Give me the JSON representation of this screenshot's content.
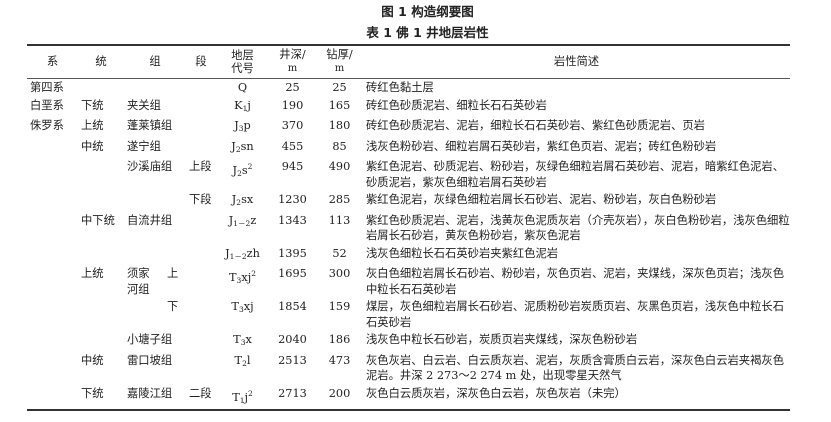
{
  "figure_caption": "图 1   构造纲要图",
  "table_caption": "表 1   佛 1 井地层岩性",
  "headers": {
    "system": "系",
    "series": "统",
    "formation": "组",
    "member": "段",
    "code_line1": "地层",
    "code_line2": "代号",
    "depth_line1": "井深/",
    "depth_line2": "m",
    "thickness_line1": "钻厚/",
    "thickness_line2": "m",
    "description": "岩性简述"
  },
  "rows": [
    {
      "system": "第四系",
      "series": "",
      "formation": "",
      "member": "",
      "code": {
        "b": "Q",
        "sub": "",
        "t": "",
        "sup": ""
      },
      "depth": "25",
      "thickness": "25",
      "description": "砖红色黏土层"
    },
    {
      "system": "白垩系",
      "series": "下统",
      "formation": "夹关组",
      "member": "",
      "code": {
        "b": "K",
        "sub": "1",
        "t": "j",
        "sup": ""
      },
      "depth": "190",
      "thickness": "165",
      "description": "砖红色砂质泥岩、细粒长石石英砂岩"
    },
    {
      "system": "侏罗系",
      "series": "上统",
      "formation": "蓬莱镇组",
      "member": "",
      "code": {
        "b": "J",
        "sub": "3",
        "t": "p",
        "sup": ""
      },
      "depth": "370",
      "thickness": "180",
      "description": "砖红色砂质泥岩、泥岩，细粒长石石英砂岩、紫红色砂质泥岩、页岩"
    },
    {
      "system": "",
      "series": "中统",
      "formation": "遂宁组",
      "member": "",
      "code": {
        "b": "J",
        "sub": "2",
        "t": "sn",
        "sup": ""
      },
      "depth": "455",
      "thickness": "85",
      "description": "浅灰色粉砂岩、细粒岩屑石英砂岩，紫红色页岩、泥岩；砖红色粉砂岩"
    },
    {
      "system": "",
      "series": "",
      "formation": "沙溪庙组",
      "member": "上段",
      "code": {
        "b": "J",
        "sub": "2",
        "t": "s",
        "sup": "2"
      },
      "depth": "945",
      "thickness": "490",
      "description": "紫红色泥岩、砂质泥岩、粉砂岩，灰绿色细粒岩屑石英砂岩、泥岩，暗紫红色泥岩、砂质泥岩，紫灰色细粒岩屑石英砂岩"
    },
    {
      "system": "",
      "series": "",
      "formation": "",
      "member": "下段",
      "code": {
        "b": "J",
        "sub": "2",
        "t": "sx",
        "sup": ""
      },
      "depth": "1230",
      "thickness": "285",
      "description": "紫红色泥岩，灰绿色细粒岩屑长石砂岩、泥岩、粉砂岩，灰白色粉砂岩"
    },
    {
      "system": "",
      "series": "中下统",
      "formation": "自流井组",
      "member": "",
      "code": {
        "b": "J",
        "sub": "1－2",
        "t": "z",
        "sup": ""
      },
      "depth": "1343",
      "thickness": "113",
      "description": "紫红色砂质泥岩、泥岩，浅黄灰色泥质灰岩（介壳灰岩），灰白色粉砂岩，浅灰色细粒岩屑长石砂岩，黄灰色粉砂岩，紫灰色泥岩"
    },
    {
      "system": "",
      "series": "",
      "formation": "",
      "member": "",
      "code": {
        "b": "J",
        "sub": "1－2",
        "t": "zh",
        "sup": ""
      },
      "depth": "1395",
      "thickness": "52",
      "description": "浅灰色细粒长石石英砂岩夹紫红色泥岩"
    },
    {
      "system": "",
      "series": "上统",
      "formation": "须家河组",
      "member": "上",
      "shift": true,
      "code": {
        "b": "T",
        "sub": "3",
        "t": "xj",
        "sup": "2"
      },
      "depth": "1695",
      "thickness": "300",
      "description": "灰白色细粒岩屑长石砂岩、粉砂岩，灰色页岩、泥岩，夹煤线，深灰色页岩；浅灰色中粒长石石英砂岩"
    },
    {
      "system": "",
      "series": "",
      "formation": "",
      "member": "下",
      "shift": true,
      "code": {
        "b": "T",
        "sub": "3",
        "t": "xj",
        "sup": ""
      },
      "depth": "1854",
      "thickness": "159",
      "description": "煤层，灰色细粒岩屑长石砂岩、泥质粉砂岩炭质页岩、灰黑色页岩，浅灰色中粒长石石英砂岩"
    },
    {
      "system": "",
      "series": "",
      "formation": "小塘子组",
      "member": "",
      "code": {
        "b": "T",
        "sub": "3",
        "t": "x",
        "sup": ""
      },
      "depth": "2040",
      "thickness": "186",
      "description": "浅灰色中粒长石砂岩，炭质页岩夹煤线，深灰色粉砂岩"
    },
    {
      "system": "",
      "series": "中统",
      "formation": "雷口坡组",
      "member": "",
      "code": {
        "b": "T",
        "sub": "2",
        "t": "l",
        "sup": ""
      },
      "depth": "2513",
      "thickness": "473",
      "description": "灰色灰岩、白云岩、白云质灰岩、泥岩，灰质含膏质白云岩，深灰色白云岩夹褐灰色泥岩。井深 2 273～2 274 m 处，出现零星天然气"
    },
    {
      "system": "",
      "series": "下统",
      "formation": "嘉陵江组",
      "member": "二段",
      "code": {
        "b": "T",
        "sub": "1",
        "t": "j",
        "sup": "2"
      },
      "depth": "2713",
      "thickness": "200",
      "description": "灰色白云质灰岩，深灰色白云岩，灰色灰岩（未完）"
    }
  ]
}
